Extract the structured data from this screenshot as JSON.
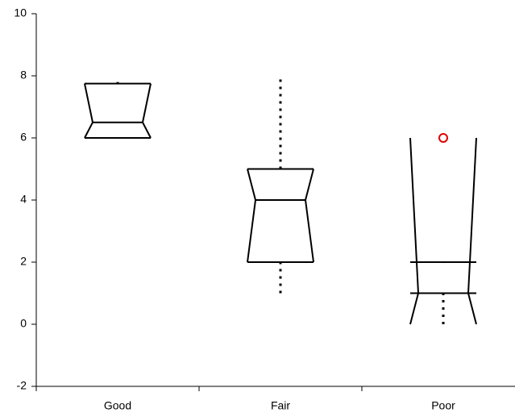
{
  "chart_data": {
    "type": "box",
    "categories": [
      "Good",
      "Fair",
      "Poor"
    ],
    "series": [
      {
        "name": null,
        "color": "#000000",
        "q1": [
          6,
          2,
          1
        ],
        "median": [
          6.5,
          4,
          1
        ],
        "q3": [
          7.75,
          5,
          2
        ],
        "whisker_low": [
          6,
          1,
          0
        ],
        "whisker_high": [
          7.8,
          8,
          2
        ],
        "notch_low": [
          6,
          2,
          0
        ],
        "notch_high": [
          7.75,
          5,
          6
        ],
        "outliers": [
          [],
          [],
          [
            6
          ]
        ],
        "outlier_color": "#e00000"
      }
    ],
    "ylim": [
      -2,
      10
    ],
    "yticks": [
      -2,
      0,
      2,
      4,
      6,
      8,
      10
    ],
    "grid": false
  }
}
